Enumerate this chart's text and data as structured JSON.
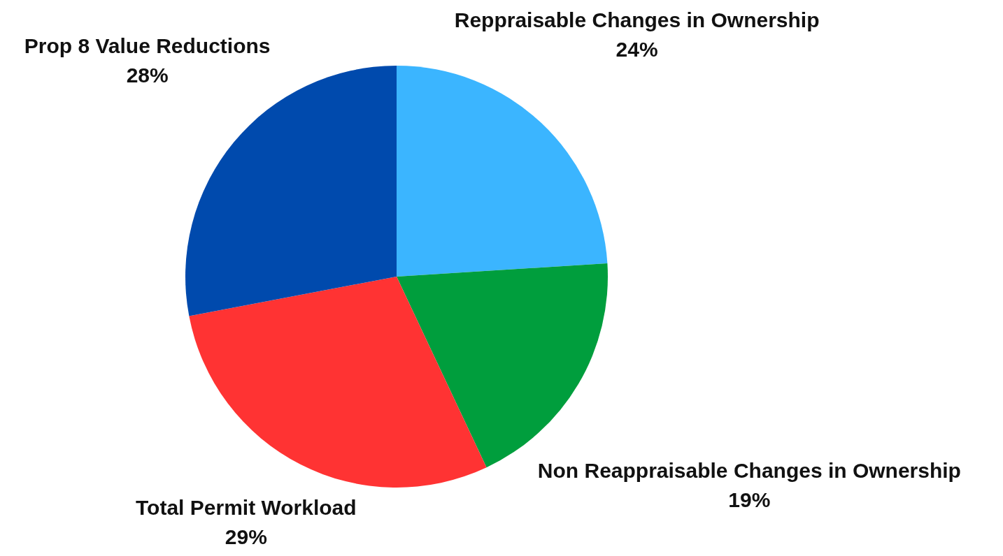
{
  "chart_data": {
    "type": "pie",
    "categories": [
      "Reppraisable Changes in Ownership",
      "Non Reappraisable Changes in Ownership",
      "Total Permit Workload",
      "Prop 8 Value Reductions"
    ],
    "values": [
      24,
      19,
      29,
      28
    ],
    "value_labels": [
      "24%",
      "19%",
      "29%",
      "28%"
    ],
    "colors": [
      "#3bb5ff",
      "#009e3d",
      "#ff3333",
      "#004aad"
    ],
    "legend": false
  }
}
